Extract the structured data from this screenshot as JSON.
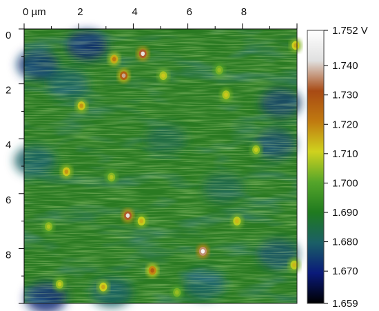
{
  "chart_data": {
    "type": "heatmap",
    "x_axis": {
      "range": [
        0,
        10
      ],
      "ticks": [
        0,
        2,
        4,
        6,
        8
      ],
      "tick_labels": [
        "0 µm",
        "2",
        "4",
        "6",
        "8"
      ],
      "position": "top"
    },
    "y_axis": {
      "range": [
        0,
        10
      ],
      "ticks": [
        0,
        2,
        4,
        6,
        8
      ],
      "tick_labels": [
        "0",
        "2",
        "4",
        "6",
        "8"
      ],
      "position": "left",
      "direction": "down"
    },
    "colorbar": {
      "min": 1.659,
      "max": 1.752,
      "ticks": [
        1.752,
        1.74,
        1.73,
        1.72,
        1.71,
        1.7,
        1.69,
        1.68,
        1.67,
        1.659
      ],
      "tick_labels": [
        "1.752 V",
        "1.740",
        "1.730",
        "1.720",
        "1.710",
        "1.700",
        "1.690",
        "1.680",
        "1.670",
        "1.659"
      ],
      "colormap": [
        "#000000",
        "#0a1a7a",
        "#1b5f66",
        "#1f7a1f",
        "#55a52a",
        "#cfd21e",
        "#c07a10",
        "#a84a14",
        "#e0e0e0",
        "#ffffff"
      ]
    },
    "base_level": 1.695,
    "hotspots": [
      {
        "x": 4.35,
        "y": 0.9,
        "value": 1.745
      },
      {
        "x": 3.3,
        "y": 1.1,
        "value": 1.722
      },
      {
        "x": 3.65,
        "y": 1.7,
        "value": 1.738
      },
      {
        "x": 2.1,
        "y": 2.8,
        "value": 1.718
      },
      {
        "x": 5.1,
        "y": 1.7,
        "value": 1.712
      },
      {
        "x": 7.4,
        "y": 2.4,
        "value": 1.712
      },
      {
        "x": 7.15,
        "y": 1.5,
        "value": 1.706
      },
      {
        "x": 1.55,
        "y": 5.2,
        "value": 1.718
      },
      {
        "x": 3.2,
        "y": 5.4,
        "value": 1.708
      },
      {
        "x": 8.5,
        "y": 4.4,
        "value": 1.71
      },
      {
        "x": 3.8,
        "y": 6.8,
        "value": 1.745
      },
      {
        "x": 4.3,
        "y": 7.0,
        "value": 1.715
      },
      {
        "x": 7.8,
        "y": 7.0,
        "value": 1.714
      },
      {
        "x": 6.55,
        "y": 8.1,
        "value": 1.75
      },
      {
        "x": 4.7,
        "y": 8.8,
        "value": 1.728
      },
      {
        "x": 2.9,
        "y": 9.4,
        "value": 1.716
      },
      {
        "x": 1.3,
        "y": 9.3,
        "value": 1.71
      },
      {
        "x": 0.9,
        "y": 7.2,
        "value": 1.708
      },
      {
        "x": 5.6,
        "y": 9.6,
        "value": 1.706
      },
      {
        "x": 9.9,
        "y": 8.6,
        "value": 1.714
      },
      {
        "x": 9.95,
        "y": 0.6,
        "value": 1.716
      }
    ],
    "lowspots": [
      {
        "x": 0.5,
        "y": 1.3,
        "value": 1.674
      },
      {
        "x": 2.3,
        "y": 0.6,
        "value": 1.672
      },
      {
        "x": 1.6,
        "y": 2.0,
        "value": 1.68
      },
      {
        "x": 9.4,
        "y": 2.7,
        "value": 1.676
      },
      {
        "x": 9.2,
        "y": 4.2,
        "value": 1.677
      },
      {
        "x": 0.4,
        "y": 4.8,
        "value": 1.68
      },
      {
        "x": 5.2,
        "y": 4.0,
        "value": 1.684
      },
      {
        "x": 0.8,
        "y": 9.8,
        "value": 1.672
      },
      {
        "x": 3.2,
        "y": 9.6,
        "value": 1.68
      },
      {
        "x": 6.6,
        "y": 9.3,
        "value": 1.68
      },
      {
        "x": 9.3,
        "y": 8.2,
        "value": 1.678
      },
      {
        "x": 7.3,
        "y": 5.8,
        "value": 1.683
      }
    ]
  }
}
